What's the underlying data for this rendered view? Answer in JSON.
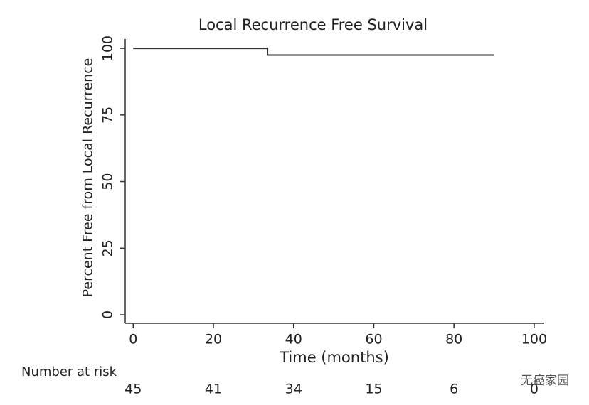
{
  "chart_data": {
    "type": "line",
    "title": "Local Recurrence Free Survival",
    "x_label": "Time (months)",
    "y_label": "Percent Free from Local Recurrence",
    "x": [
      0,
      33.5,
      33.5,
      90
    ],
    "series": [
      {
        "color": "#333333",
        "values": [
          100,
          100,
          97.5,
          97.5
        ]
      }
    ],
    "xlim": [
      -2,
      102.5
    ],
    "ylim": [
      -3.2,
      103.5
    ],
    "xticks": [
      0,
      20,
      40,
      60,
      80,
      100
    ],
    "yticks": [
      0,
      25,
      50,
      75,
      100
    ],
    "risk_table": {
      "label": "Number at risk",
      "values": [
        45,
        41,
        34,
        15,
        6,
        0
      ]
    },
    "watermark": "无癌家园"
  }
}
